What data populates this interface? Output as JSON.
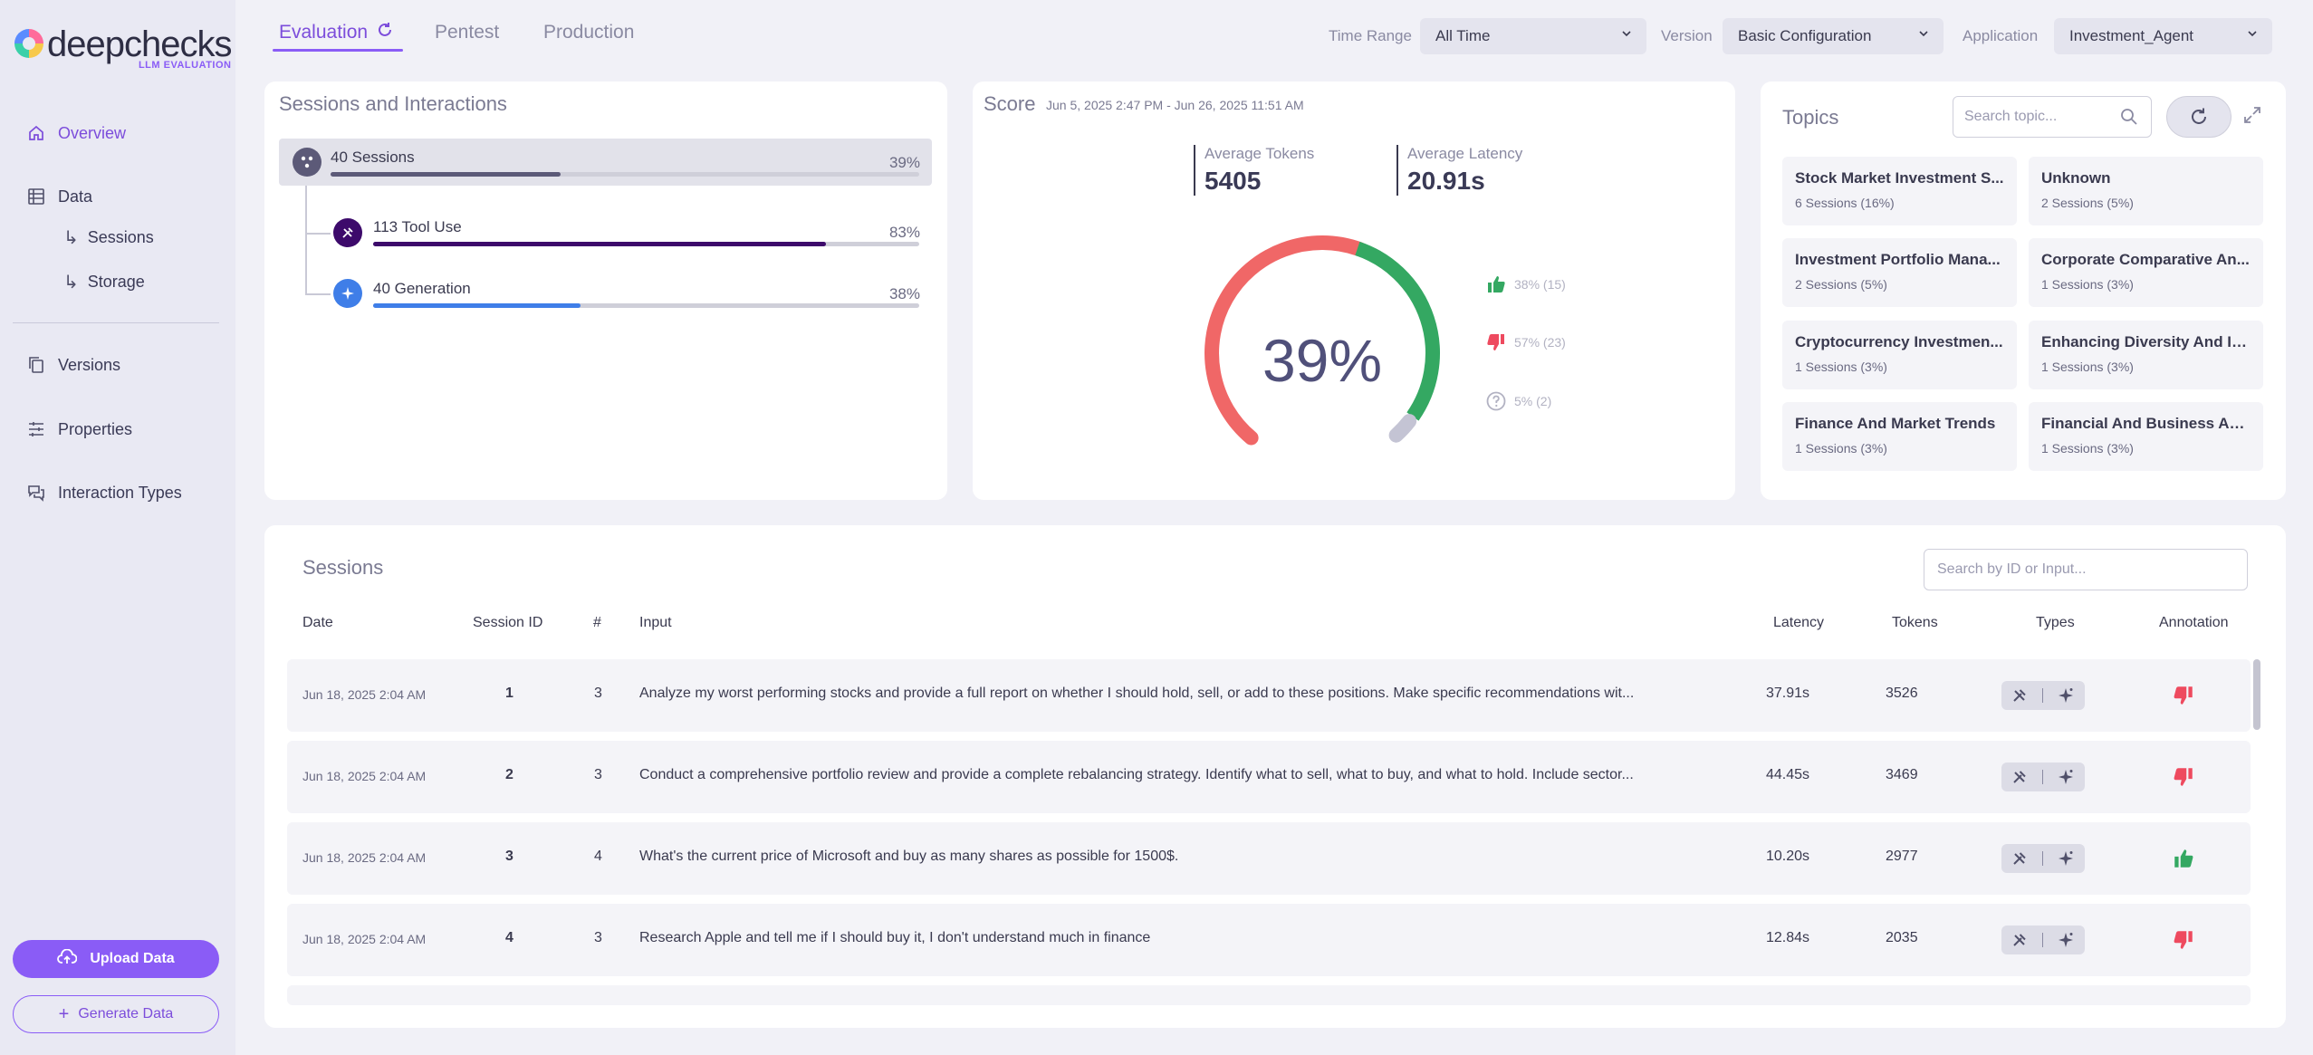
{
  "brand": {
    "name": "deepchecks",
    "sub": "LLM EVALUATION"
  },
  "sidebar": {
    "items": [
      {
        "label": "Overview",
        "icon": "home-icon",
        "active": true
      },
      {
        "label": "Data",
        "icon": "table-icon"
      },
      {
        "label": "Versions",
        "icon": "copy-icon"
      },
      {
        "label": "Properties",
        "icon": "sliders-icon"
      },
      {
        "label": "Interaction Types",
        "icon": "chat-icon"
      }
    ],
    "sub_items": [
      {
        "label": "Sessions"
      },
      {
        "label": "Storage"
      }
    ],
    "upload_label": "Upload Data",
    "generate_label": "Generate Data"
  },
  "tabs": [
    {
      "label": "Evaluation",
      "active": true
    },
    {
      "label": "Pentest"
    },
    {
      "label": "Production"
    }
  ],
  "filters": {
    "time_range": {
      "label": "Time Range",
      "value": "All Time"
    },
    "version": {
      "label": "Version",
      "value": "Basic Configuration"
    },
    "application": {
      "label": "Application",
      "value": "Investment_Agent"
    }
  },
  "sessions_interactions": {
    "title": "Sessions and Interactions",
    "rows": [
      {
        "label": "40 Sessions",
        "pct": "39%",
        "fill": 0.39,
        "color": "#5c5a78"
      },
      {
        "label": "113 Tool Use",
        "pct": "83%",
        "fill": 0.83,
        "color": "#3d0a6b"
      },
      {
        "label": "40 Generation",
        "pct": "38%",
        "fill": 0.38,
        "color": "#3f7ee8"
      }
    ]
  },
  "score": {
    "title": "Score",
    "date_range": "Jun 5, 2025 2:47 PM - Jun 26, 2025 11:51 AM",
    "avg_tokens_label": "Average Tokens",
    "avg_tokens": "5405",
    "avg_latency_label": "Average Latency",
    "avg_latency": "20.91s",
    "percent": "39%",
    "segments": {
      "negative": 0.57,
      "positive": 0.38,
      "unknown": 0.05
    },
    "legend": [
      {
        "text": "38% (15)",
        "icon": "thumbs-up-icon"
      },
      {
        "text": "57% (23)",
        "icon": "thumbs-down-icon"
      },
      {
        "text": "5% (2)",
        "icon": "question-icon"
      }
    ],
    "colors": {
      "positive": "#34a862",
      "negative": "#f06767",
      "unknown": "#c4c4d4"
    }
  },
  "topics": {
    "title": "Topics",
    "search_placeholder": "Search topic...",
    "items": [
      {
        "name": "Stock Market Investment S...",
        "count": "6 Sessions (16%)"
      },
      {
        "name": "Unknown",
        "count": "2 Sessions (5%)"
      },
      {
        "name": "Investment Portfolio Mana...",
        "count": "2 Sessions (5%)"
      },
      {
        "name": "Corporate Comparative An...",
        "count": "1 Sessions (3%)"
      },
      {
        "name": "Cryptocurrency Investmen...",
        "count": "1 Sessions (3%)"
      },
      {
        "name": "Enhancing Diversity And In...",
        "count": "1 Sessions (3%)"
      },
      {
        "name": "Finance And Market Trends",
        "count": "1 Sessions (3%)"
      },
      {
        "name": "Financial And Business Ana...",
        "count": "1 Sessions (3%)"
      }
    ]
  },
  "sessions": {
    "title": "Sessions",
    "search_placeholder": "Search by ID or Input...",
    "headers": {
      "date": "Date",
      "session_id": "Session ID",
      "count": "#",
      "input": "Input",
      "latency": "Latency",
      "tokens": "Tokens",
      "types": "Types",
      "annotation": "Annotation"
    },
    "rows": [
      {
        "date": "Jun 18, 2025 2:04 AM",
        "id": "1",
        "count": "3",
        "input": "Analyze my worst performing stocks and provide a full report on whether I should hold, sell, or add to these positions. Make specific recommendations wit...",
        "latency": "37.91s",
        "tokens": "3526",
        "annotation": "bad"
      },
      {
        "date": "Jun 18, 2025 2:04 AM",
        "id": "2",
        "count": "3",
        "input": "Conduct a comprehensive portfolio review and provide a complete rebalancing strategy. Identify what to sell, what to buy, and what to hold. Include sector...",
        "latency": "44.45s",
        "tokens": "3469",
        "annotation": "bad"
      },
      {
        "date": "Jun 18, 2025 2:04 AM",
        "id": "3",
        "count": "4",
        "input": "What's the current price of Microsoft and buy as many shares as possible for 1500$.",
        "latency": "10.20s",
        "tokens": "2977",
        "annotation": "good"
      },
      {
        "date": "Jun 18, 2025 2:04 AM",
        "id": "4",
        "count": "3",
        "input": "Research Apple and tell me if I should buy it, I don't understand much in finance",
        "latency": "12.84s",
        "tokens": "2035",
        "annotation": "bad"
      }
    ]
  }
}
